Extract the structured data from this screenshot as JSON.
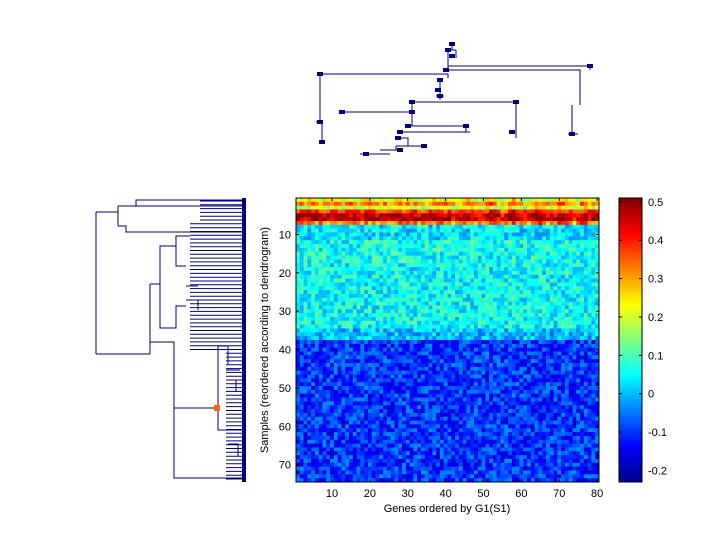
{
  "chart_data": {
    "type": "heatmap",
    "xlabel": "Genes ordered by G1(S1)",
    "ylabel": "Samples (reordered according to dendrogram)",
    "n_cols": 80,
    "n_rows": 74,
    "xticks": [
      10,
      20,
      30,
      40,
      50,
      60,
      70,
      80
    ],
    "yticks": [
      10,
      20,
      30,
      40,
      50,
      60,
      70
    ],
    "colorbar": {
      "colormap": "jet",
      "range": [
        -0.23,
        0.51
      ],
      "ticks": [
        -0.2,
        -0.1,
        0,
        0.1,
        0.2,
        0.3,
        0.4,
        0.5
      ],
      "tick_labels": [
        "-0.2",
        "-0.1",
        "0",
        "0.1",
        "0.2",
        "0.3",
        "0.4",
        "0.5"
      ]
    },
    "row_mean_values": [
      {
        "rows": [
          1,
          1
        ],
        "mean": 0.22
      },
      {
        "rows": [
          2,
          2
        ],
        "mean": 0.32
      },
      {
        "rows": [
          3,
          3
        ],
        "mean": 0.2
      },
      {
        "rows": [
          4,
          4
        ],
        "mean": 0.38
      },
      {
        "rows": [
          5,
          6
        ],
        "mean": 0.47
      },
      {
        "rows": [
          7,
          7
        ],
        "mean": 0.33
      },
      {
        "rows": [
          8,
          11
        ],
        "mean": 0.03
      },
      {
        "rows": [
          12,
          17
        ],
        "mean": 0.06
      },
      {
        "rows": [
          18,
          34
        ],
        "mean": 0.05
      },
      {
        "rows": [
          35,
          37
        ],
        "mean": 0.0
      },
      {
        "rows": [
          38,
          74
        ],
        "mean": -0.1
      }
    ],
    "column_dendrogram": {
      "leaves": 80,
      "position": "top"
    },
    "row_dendrogram": {
      "leaves": 74,
      "position": "left"
    }
  }
}
